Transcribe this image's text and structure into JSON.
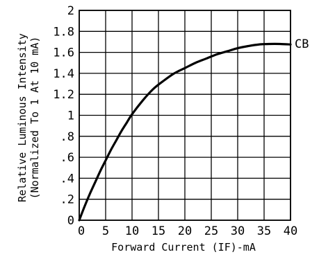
{
  "chart_data": {
    "type": "line",
    "title": "",
    "xlabel": "Forward Current (IF)-mA",
    "ylabel_lines": [
      "Relative Luminous Intensity",
      "(Normalized To 1 At 10 mA)"
    ],
    "xlim": [
      0,
      40
    ],
    "ylim": [
      0,
      2
    ],
    "x_ticks": [
      0,
      5,
      10,
      15,
      20,
      25,
      30,
      35,
      40
    ],
    "x_tick_labels": [
      "0",
      "5",
      "10",
      "15",
      "20",
      "25",
      "30",
      "35",
      "40"
    ],
    "y_ticks": [
      0,
      0.2,
      0.4,
      0.6,
      0.8,
      1,
      1.2,
      1.4,
      1.6,
      1.8,
      2
    ],
    "y_tick_labels": [
      "0",
      ".2",
      ".4",
      ".6",
      ".8",
      "1",
      "1.2",
      "1.4",
      "1.6",
      "1.8",
      "2"
    ],
    "grid": true,
    "series": [
      {
        "name": "CB",
        "color": "#000000",
        "x": [
          0,
          1,
          2,
          3,
          4,
          5,
          6,
          7,
          8,
          9,
          10,
          12,
          14,
          16,
          18,
          20,
          22,
          24,
          26,
          28,
          30,
          32,
          34,
          36,
          38,
          40
        ],
        "y": [
          0,
          0.13,
          0.25,
          0.36,
          0.47,
          0.57,
          0.67,
          0.76,
          0.85,
          0.93,
          1.01,
          1.14,
          1.25,
          1.33,
          1.4,
          1.45,
          1.5,
          1.54,
          1.58,
          1.61,
          1.64,
          1.66,
          1.675,
          1.68,
          1.68,
          1.675
        ]
      }
    ]
  }
}
